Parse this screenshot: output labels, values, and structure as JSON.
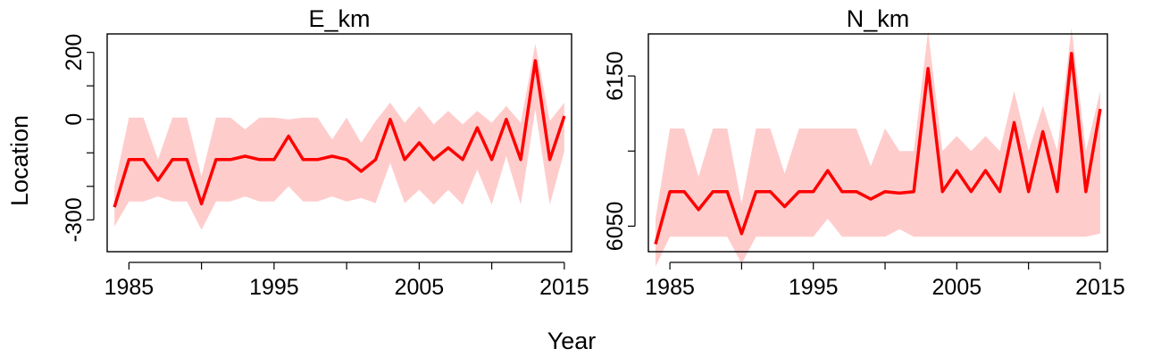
{
  "figure": {
    "xlabel": "Year",
    "ylabel": "Location"
  },
  "chart_data": [
    {
      "type": "line",
      "title": "E_km",
      "colors": {
        "line": "#ff0000",
        "band": "#ffcccc"
      },
      "xlim": [
        1983.5,
        2015.5
      ],
      "ylim": [
        -395,
        255
      ],
      "xticks": [
        1985,
        1990,
        1995,
        2000,
        2005,
        2010,
        2015
      ],
      "xtick_labels": [
        "1985",
        "",
        "1995",
        "",
        "2005",
        "",
        "2015"
      ],
      "yticks": [
        -300,
        -200,
        -100,
        0,
        100,
        200
      ],
      "ytick_labels": [
        "-300",
        "",
        "",
        "0",
        "",
        "200"
      ],
      "x": [
        1984,
        1985,
        1986,
        1987,
        1988,
        1989,
        1990,
        1991,
        1992,
        1993,
        1994,
        1995,
        1996,
        1997,
        1998,
        1999,
        2000,
        2001,
        2002,
        2003,
        2004,
        2005,
        2006,
        2007,
        2008,
        2009,
        2010,
        2011,
        2012,
        2013,
        2014,
        2015
      ],
      "series": [
        {
          "role": "estimate",
          "values": [
            -262,
            -120,
            -120,
            -182,
            -120,
            -120,
            -252,
            -120,
            -120,
            -110,
            -120,
            -120,
            -50,
            -120,
            -120,
            -110,
            -120,
            -155,
            -120,
            0,
            -120,
            -70,
            -120,
            -85,
            -120,
            -25,
            -120,
            0,
            -120,
            175,
            -120,
            10
          ]
        },
        {
          "role": "lower",
          "values": [
            -320,
            -245,
            -245,
            -230,
            -245,
            -245,
            -330,
            -245,
            -245,
            -230,
            -245,
            -245,
            -200,
            -245,
            -245,
            -230,
            -245,
            -235,
            -250,
            -130,
            -250,
            -210,
            -255,
            -210,
            -255,
            -150,
            -255,
            -110,
            -255,
            30,
            -255,
            -95
          ]
        },
        {
          "role": "upper",
          "values": [
            -200,
            5,
            5,
            -120,
            5,
            5,
            -170,
            5,
            5,
            -30,
            5,
            5,
            0,
            5,
            5,
            -60,
            5,
            -70,
            -5,
            50,
            -10,
            40,
            -15,
            25,
            -15,
            25,
            -10,
            40,
            -10,
            225,
            -5,
            50
          ]
        }
      ]
    },
    {
      "type": "line",
      "title": "N_km",
      "colors": {
        "line": "#ff0000",
        "band": "#ffcccc"
      },
      "xlim": [
        1983.5,
        2015.5
      ],
      "ylim": [
        6033,
        6178
      ],
      "xticks": [
        1985,
        1990,
        1995,
        2000,
        2005,
        2010,
        2015
      ],
      "xtick_labels": [
        "1985",
        "",
        "1995",
        "",
        "2005",
        "",
        "2015"
      ],
      "yticks": [
        6050,
        6100,
        6150
      ],
      "ytick_labels": [
        "6050",
        "",
        "6150"
      ],
      "x": [
        1984,
        1985,
        1986,
        1987,
        1988,
        1989,
        1990,
        1991,
        1992,
        1993,
        1994,
        1995,
        1996,
        1997,
        1998,
        1999,
        2000,
        2001,
        2002,
        2003,
        2004,
        2005,
        2006,
        2007,
        2008,
        2009,
        2010,
        2011,
        2012,
        2013,
        2014,
        2015
      ],
      "series": [
        {
          "role": "estimate",
          "values": [
            6038,
            6073,
            6073,
            6061,
            6073,
            6073,
            6045,
            6073,
            6073,
            6063,
            6073,
            6073,
            6087,
            6073,
            6073,
            6068,
            6073,
            6072,
            6073,
            6155,
            6073,
            6087,
            6073,
            6087,
            6073,
            6119,
            6073,
            6113,
            6073,
            6165,
            6073,
            6128
          ]
        },
        {
          "role": "lower",
          "values": [
            6023,
            6043,
            6043,
            6043,
            6043,
            6043,
            6025,
            6043,
            6043,
            6043,
            6043,
            6043,
            6055,
            6043,
            6043,
            6043,
            6043,
            6048,
            6043,
            6043,
            6043,
            6043,
            6043,
            6043,
            6043,
            6043,
            6043,
            6043,
            6043,
            6043,
            6043,
            6045
          ]
        },
        {
          "role": "upper",
          "values": [
            6055,
            6115,
            6115,
            6083,
            6115,
            6115,
            6065,
            6115,
            6115,
            6085,
            6115,
            6115,
            6115,
            6115,
            6115,
            6090,
            6115,
            6100,
            6100,
            6180,
            6100,
            6110,
            6100,
            6110,
            6100,
            6140,
            6100,
            6130,
            6100,
            6182,
            6100,
            6140
          ]
        }
      ]
    }
  ]
}
